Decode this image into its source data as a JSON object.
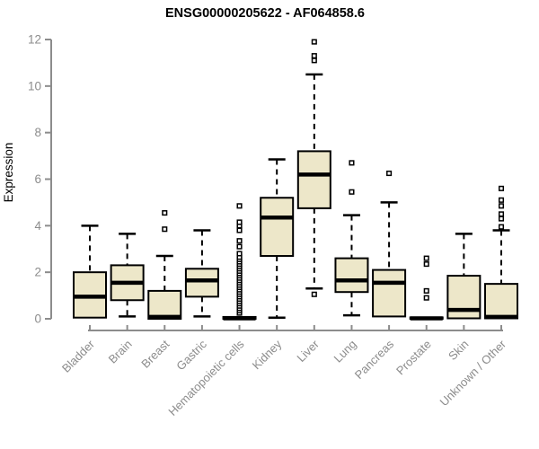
{
  "page": {
    "background": "#ffffff"
  },
  "chart_data": {
    "type": "boxplot",
    "title": "ENSG00000205622 - AF064858.6",
    "ylabel": "Expression",
    "xlabel": "",
    "ylim": [
      0,
      12
    ],
    "yticks": [
      0,
      2,
      4,
      6,
      8,
      10,
      12
    ],
    "grid": false,
    "legend": null,
    "categories": [
      "Bladder",
      "Brain",
      "Breast",
      "Gastric",
      "Hematopoietic cells",
      "Kidney",
      "Liver",
      "Lung",
      "Pancreas",
      "Prostate",
      "Skin",
      "Unknown / Other"
    ],
    "boxes": [
      {
        "category": "Bladder",
        "low": 0,
        "q1": 0.05,
        "median": 0.95,
        "q3": 2.0,
        "high": 4.0,
        "outliers": []
      },
      {
        "category": "Brain",
        "low": 0.1,
        "q1": 0.8,
        "median": 1.55,
        "q3": 2.3,
        "high": 3.65,
        "outliers": []
      },
      {
        "category": "Breast",
        "low": 0,
        "q1": 0,
        "median": 0.08,
        "q3": 1.2,
        "high": 2.7,
        "outliers": [
          3.85,
          4.55
        ]
      },
      {
        "category": "Gastric",
        "low": 0.1,
        "q1": 0.95,
        "median": 1.65,
        "q3": 2.15,
        "high": 3.8,
        "outliers": []
      },
      {
        "category": "Hematopoietic cells",
        "low": 0,
        "q1": 0,
        "median": 0.02,
        "q3": 0.08,
        "high": 0.12,
        "outliers": [
          0.25,
          0.35,
          0.45,
          0.55,
          0.65,
          0.75,
          0.85,
          0.95,
          1.05,
          1.15,
          1.25,
          1.35,
          1.45,
          1.55,
          1.65,
          1.75,
          1.85,
          1.95,
          2.05,
          2.15,
          2.25,
          2.35,
          2.45,
          2.55,
          2.65,
          2.8,
          3.1,
          3.35,
          3.8,
          4.0,
          4.15,
          4.85
        ]
      },
      {
        "category": "Kidney",
        "low": 0.05,
        "q1": 2.7,
        "median": 4.35,
        "q3": 5.2,
        "high": 6.85,
        "outliers": []
      },
      {
        "category": "Liver",
        "low": 1.3,
        "q1": 4.75,
        "median": 6.2,
        "q3": 7.2,
        "high": 10.5,
        "outliers": [
          1.05,
          11.1,
          11.3,
          11.9
        ]
      },
      {
        "category": "Lung",
        "low": 0.15,
        "q1": 1.15,
        "median": 1.65,
        "q3": 2.6,
        "high": 4.45,
        "outliers": [
          5.45,
          6.7
        ]
      },
      {
        "category": "Pancreas",
        "low": 0.05,
        "q1": 0.1,
        "median": 1.55,
        "q3": 2.1,
        "high": 5.0,
        "outliers": [
          6.25
        ]
      },
      {
        "category": "Prostate",
        "low": 0,
        "q1": 0,
        "median": 0.02,
        "q3": 0.06,
        "high": 0.1,
        "outliers": [
          0.9,
          1.2,
          2.35,
          2.6
        ]
      },
      {
        "category": "Skin",
        "low": 0,
        "q1": 0.02,
        "median": 0.38,
        "q3": 1.85,
        "high": 3.65,
        "outliers": []
      },
      {
        "category": "Unknown / Other",
        "low": 0,
        "q1": 0.02,
        "median": 0.08,
        "q3": 1.5,
        "high": 3.8,
        "outliers": [
          3.95,
          4.3,
          4.5,
          4.85,
          5.1,
          5.6
        ]
      }
    ],
    "colors": {
      "box_fill": "#ede7c9",
      "box_stroke": "#000000",
      "median": "#000000",
      "whisker": "#000000",
      "outlier_stroke": "#000000",
      "outlier_fill": "#ffffff",
      "axis": "#8c8c8c",
      "tick_label": "#8c8c8c",
      "title": "#000000",
      "background": "#ffffff"
    }
  }
}
